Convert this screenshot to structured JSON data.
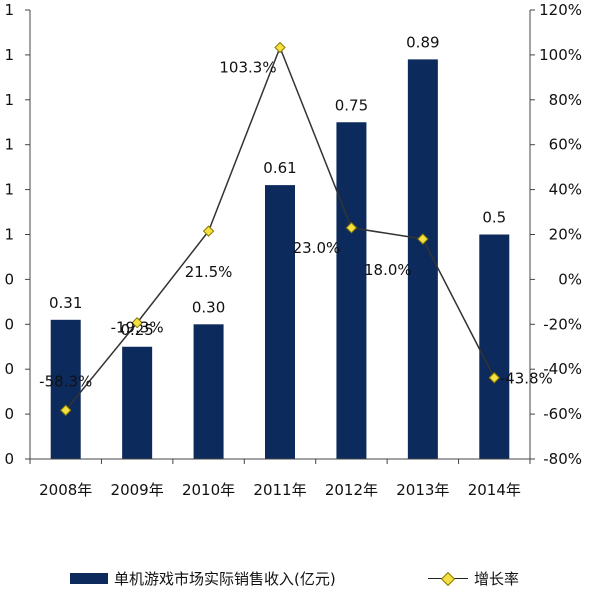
{
  "chart_data": {
    "type": "bar",
    "categories": [
      "2008年",
      "2009年",
      "2010年",
      "2011年",
      "2012年",
      "2013年",
      "2014年"
    ],
    "series": [
      {
        "name": "单机游戏市场实际销售收入(亿元)",
        "kind": "bar",
        "axis": "left",
        "values": [
          0.31,
          0.25,
          0.3,
          0.61,
          0.75,
          0.89,
          0.5
        ],
        "labels": [
          "0.31",
          "0.25",
          "0.30",
          "0.61",
          "0.75",
          "0.89",
          "0.5"
        ]
      },
      {
        "name": "增长率",
        "kind": "line",
        "axis": "right",
        "values": [
          -58.3,
          -19.3,
          21.5,
          103.3,
          23.0,
          18.0,
          -43.8
        ],
        "labels": [
          "-58.3%",
          "-19.3%",
          "21.5%",
          "103.3%",
          "23.0%",
          "18.0%",
          "-43.8%"
        ]
      }
    ],
    "left_axis": {
      "ylim": [
        0,
        1.0
      ],
      "ticks": [
        0,
        0.1,
        0.2,
        0.3,
        0.4,
        0.5,
        0.6,
        0.7,
        0.8,
        0.9,
        1.0
      ],
      "tick_labels": [
        "0",
        "0",
        "0",
        "0",
        "0",
        "1",
        "1",
        "1",
        "1",
        "1",
        "1"
      ]
    },
    "right_axis": {
      "ylim": [
        -80,
        120
      ],
      "ticks": [
        -80,
        -60,
        -40,
        -20,
        0,
        20,
        40,
        60,
        80,
        100,
        120
      ],
      "tick_labels": [
        "-80%",
        "-60%",
        "-40%",
        "-20%",
        "0%",
        "20%",
        "40%",
        "60%",
        "80%",
        "100%",
        "120%"
      ]
    },
    "colors": {
      "bar": "#0d2a5c",
      "line": "#333333",
      "marker": "#f5e042",
      "marker_edge": "#8a7a00"
    },
    "grid": false,
    "legend_position": "bottom"
  },
  "legend": {
    "bar_label": "单机游戏市场实际销售收入(亿元)",
    "line_label": "增长率"
  }
}
